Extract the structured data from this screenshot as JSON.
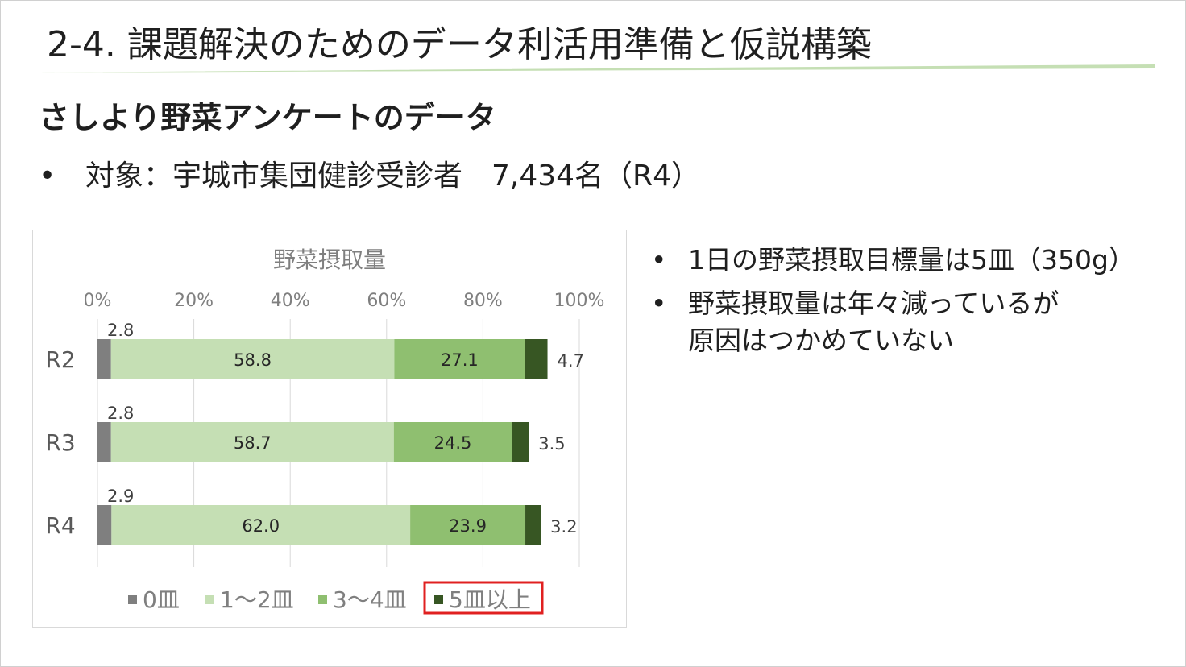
{
  "slide": {
    "title": "2-4. 課題解決のためのデータ利活用準備と仮説構築",
    "subtitle": "さしより野菜アンケートのデータ",
    "target_bullet": "•",
    "target_text": "対象：宇城市集団健診受診者　7,434名（R4）",
    "accent_color": "#c5dfb4"
  },
  "notes": {
    "bullet": "•",
    "items": [
      "1日の野菜摂取目標量は5皿（350g）",
      "野菜摂取量は年々減っているが\n原因はつかめていない"
    ]
  },
  "chart_data": {
    "type": "bar",
    "orientation": "horizontal",
    "stacked": "percent",
    "title": "野菜摂取量",
    "categories": [
      "R2",
      "R3",
      "R4"
    ],
    "xlim": [
      0,
      100
    ],
    "x_ticks": [
      "0%",
      "20%",
      "40%",
      "60%",
      "80%",
      "100%"
    ],
    "grid": "vertical",
    "legend_position": "bottom",
    "highlighted_legend_item": "5皿以上",
    "highlight_color": "#e02020",
    "series": [
      {
        "name": "0皿",
        "color": "#7f7f7f",
        "values": [
          2.8,
          2.8,
          2.9
        ]
      },
      {
        "name": "1～2皿",
        "color": "#c5dfb4",
        "values": [
          58.8,
          58.7,
          62.0
        ]
      },
      {
        "name": "3～4皿",
        "color": "#8fbf70",
        "values": [
          27.1,
          24.5,
          23.9
        ]
      },
      {
        "name": "5皿以上",
        "color": "#375623",
        "values": [
          4.7,
          3.5,
          3.2
        ]
      }
    ],
    "data_labels": [
      [
        "2.8",
        "58.8",
        "27.1",
        "4.7"
      ],
      [
        "2.8",
        "58.7",
        "24.5",
        "3.5"
      ],
      [
        "2.9",
        "62.0",
        "23.9",
        "3.2"
      ]
    ]
  }
}
